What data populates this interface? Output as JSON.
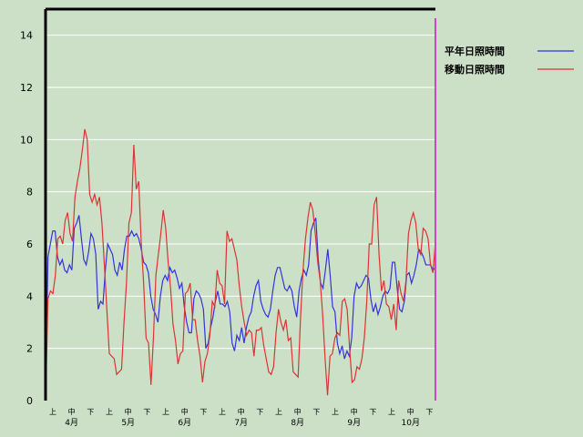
{
  "chart_data": {
    "type": "line",
    "ylim": [
      0,
      15
    ],
    "yticks": [
      0,
      2,
      4,
      6,
      8,
      10,
      12,
      14
    ],
    "grid": true,
    "legend_position": "top-right",
    "x_dekad_labels": [
      "上",
      "中",
      "下",
      "上",
      "中",
      "下",
      "上",
      "中",
      "下",
      "上",
      "中",
      "下",
      "上",
      "中",
      "下",
      "上",
      "中",
      "下",
      "上",
      "中",
      "下"
    ],
    "x_month_labels": [
      "4月",
      "5月",
      "6月",
      "7月",
      "8月",
      "9月",
      "10月"
    ],
    "colors": {
      "background": "#cce0c8",
      "grid": "#ffffff",
      "axis": "#000000",
      "series_normal": "#3333dd",
      "series_moving": "#dd3333",
      "marker": "#cc44cc"
    },
    "series": [
      {
        "name": "平年日照時間",
        "color": "#3333dd",
        "values": [
          0,
          5.5,
          6.0,
          6.5,
          6.5,
          5.5,
          5.2,
          5.4,
          5.0,
          4.9,
          5.2,
          5.0,
          6.6,
          6.8,
          7.1,
          6.2,
          5.4,
          5.2,
          5.7,
          6.4,
          6.2,
          5.6,
          3.5,
          3.8,
          3.7,
          5.0,
          6.0,
          5.8,
          5.6,
          5.0,
          4.8,
          5.3,
          5.0,
          5.8,
          6.3,
          6.3,
          6.5,
          6.3,
          6.4,
          6.2,
          5.8,
          5.3,
          5.2,
          4.9,
          4.0,
          3.5,
          3.3,
          3.0,
          4.0,
          4.6,
          4.8,
          4.6,
          5.1,
          4.9,
          5.0,
          4.7,
          4.3,
          4.5,
          3.6,
          3.0,
          2.6,
          2.6,
          3.9,
          4.2,
          4.1,
          3.9,
          3.5,
          2.0,
          2.2,
          2.8,
          3.2,
          3.8,
          4.2,
          3.7,
          3.7,
          3.6,
          3.8,
          3.4,
          2.2,
          1.9,
          2.5,
          2.3,
          2.8,
          2.2,
          2.8,
          3.2,
          3.4,
          4.0,
          4.4,
          4.6,
          3.8,
          3.5,
          3.3,
          3.2,
          3.5,
          4.2,
          4.8,
          5.1,
          5.1,
          4.7,
          4.3,
          4.2,
          4.4,
          4.2,
          3.6,
          3.2,
          4.2,
          4.7,
          5.0,
          4.8,
          5.2,
          6.5,
          6.8,
          7.0,
          5.4,
          4.5,
          4.3,
          5.0,
          5.8,
          4.8,
          3.6,
          3.4,
          2.2,
          1.8,
          2.1,
          1.6,
          1.9,
          1.7,
          2.4,
          4.0,
          4.5,
          4.3,
          4.4,
          4.6,
          4.8,
          4.7,
          3.9,
          3.4,
          3.7,
          3.3,
          3.6,
          4.0,
          4.2,
          4.1,
          4.3,
          5.3,
          5.3,
          4.3,
          3.5,
          3.4,
          3.8,
          4.8,
          4.9,
          4.5,
          4.8,
          5.2,
          5.8,
          5.7,
          5.5,
          5.2,
          5.2,
          5.2,
          5.0,
          5.1
        ]
      },
      {
        "name": "移動日照時間",
        "color": "#dd3333",
        "values": [
          0,
          3.9,
          4.2,
          4.1,
          4.8,
          6.2,
          6.3,
          6.0,
          6.9,
          7.2,
          6.4,
          6.1,
          7.8,
          8.4,
          8.9,
          9.6,
          10.4,
          10.0,
          7.9,
          7.6,
          7.9,
          7.5,
          7.8,
          6.8,
          5.2,
          3.5,
          1.8,
          1.7,
          1.6,
          1.0,
          1.1,
          1.2,
          3.0,
          4.5,
          6.8,
          7.2,
          9.8,
          8.1,
          8.4,
          6.1,
          4.5,
          2.4,
          2.2,
          0.6,
          2.4,
          4.8,
          5.6,
          6.4,
          7.3,
          6.6,
          5.3,
          4.3,
          2.9,
          2.3,
          1.4,
          1.8,
          1.9,
          4.1,
          4.2,
          4.5,
          3.1,
          3.1,
          2.3,
          1.7,
          0.7,
          1.5,
          1.8,
          2.5,
          3.8,
          3.6,
          5.0,
          4.5,
          4.4,
          3.7,
          6.5,
          6.1,
          6.2,
          5.8,
          5.4,
          4.4,
          3.6,
          3.0,
          2.5,
          2.7,
          2.6,
          1.7,
          2.7,
          2.7,
          2.8,
          2.1,
          1.6,
          1.1,
          1.0,
          1.3,
          2.6,
          3.5,
          3.0,
          2.7,
          3.1,
          2.3,
          2.4,
          1.1,
          1.0,
          0.9,
          3.2,
          5.0,
          6.2,
          7.0,
          7.6,
          7.3,
          6.4,
          5.3,
          4.6,
          3.3,
          1.6,
          0.2,
          1.7,
          1.8,
          2.4,
          2.6,
          2.5,
          3.8,
          3.9,
          3.5,
          2.0,
          0.7,
          0.8,
          1.3,
          1.2,
          1.6,
          2.4,
          3.8,
          6.0,
          6.0,
          7.5,
          7.8,
          5.6,
          4.2,
          4.6,
          3.7,
          3.6,
          3.1,
          3.7,
          2.7,
          4.6,
          4.1,
          3.8,
          4.6,
          6.4,
          6.9,
          7.2,
          6.8,
          5.8,
          5.6,
          6.6,
          6.5,
          6.2,
          5.2,
          4.9,
          6.1
        ]
      }
    ]
  }
}
